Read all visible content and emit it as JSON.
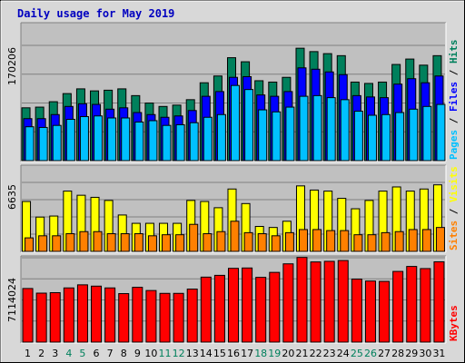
{
  "title": "Daily usage for May 2019",
  "colors": {
    "hits": "#00805c",
    "files": "#0000ff",
    "pages": "#00c0ff",
    "visits": "#ffff00",
    "sites": "#ff8000",
    "kbytes": "#ff0000",
    "plot_bg": "#c0c0c0",
    "frame_bg": "#d8d8d8",
    "title": "#0000c0",
    "weekend": "#00805c",
    "weekday": "#000000"
  },
  "chart_data": [
    {
      "type": "bar",
      "panel": "hits-files-pages",
      "categories": [
        "1",
        "2",
        "3",
        "4",
        "5",
        "6",
        "7",
        "8",
        "9",
        "10",
        "11",
        "12",
        "13",
        "14",
        "15",
        "16",
        "17",
        "18",
        "19",
        "20",
        "21",
        "22",
        "23",
        "24",
        "25",
        "26",
        "27",
        "28",
        "29",
        "30",
        "31"
      ],
      "max_label": "170206",
      "ylim": [
        0,
        170206
      ],
      "legend": [
        {
          "label": "Pages",
          "color_key": "pages"
        },
        {
          "label": "Files",
          "color_key": "files"
        },
        {
          "label": "Hits",
          "color_key": "hits"
        }
      ],
      "legend_sep": "/",
      "series": [
        {
          "name": "Hits",
          "color_key": "hits",
          "values": [
            78000,
            79000,
            87000,
            99000,
            106000,
            103000,
            104000,
            106000,
            96000,
            85000,
            80000,
            82000,
            90000,
            115000,
            125000,
            152000,
            146000,
            118000,
            116000,
            123000,
            166000,
            161000,
            158000,
            155000,
            116000,
            114000,
            116000,
            142000,
            150000,
            141000,
            155000
          ]
        },
        {
          "name": "Files",
          "color_key": "files",
          "values": [
            62000,
            62000,
            68000,
            80000,
            84000,
            83000,
            76000,
            78000,
            71000,
            68000,
            64000,
            66000,
            74000,
            95000,
            102000,
            123000,
            124000,
            97000,
            95000,
            102000,
            137000,
            135000,
            131000,
            127000,
            96000,
            94000,
            93000,
            113000,
            121000,
            115000,
            125000
          ]
        },
        {
          "name": "Pages",
          "color_key": "pages",
          "values": [
            50000,
            49000,
            52000,
            61000,
            65000,
            66000,
            63000,
            63000,
            57000,
            59000,
            52000,
            53000,
            56000,
            64000,
            68000,
            111000,
            105000,
            75000,
            72000,
            79000,
            95000,
            96000,
            93000,
            90000,
            73000,
            67000,
            68000,
            71000,
            76000,
            80000,
            83000
          ]
        }
      ]
    },
    {
      "type": "bar",
      "panel": "visits-sites",
      "categories": [
        "1",
        "2",
        "3",
        "4",
        "5",
        "6",
        "7",
        "8",
        "9",
        "10",
        "11",
        "12",
        "13",
        "14",
        "15",
        "16",
        "17",
        "18",
        "19",
        "20",
        "21",
        "22",
        "23",
        "24",
        "25",
        "26",
        "27",
        "28",
        "29",
        "30",
        "31"
      ],
      "max_label": "6635",
      "ylim": [
        0,
        6635
      ],
      "legend": [
        {
          "label": "Sites",
          "color_key": "sites"
        },
        {
          "label": "Visits",
          "color_key": "visits"
        }
      ],
      "legend_sep": "/",
      "series": [
        {
          "name": "Visits",
          "color_key": "visits",
          "values": [
            4800,
            3300,
            3400,
            5800,
            5400,
            5200,
            4900,
            3500,
            2700,
            2700,
            2700,
            2700,
            4900,
            4800,
            4200,
            6000,
            4600,
            2400,
            2300,
            2900,
            6300,
            5900,
            5800,
            5100,
            4100,
            4900,
            5800,
            6200,
            5800,
            6000,
            6400
          ]
        },
        {
          "name": "Sites",
          "color_key": "sites",
          "values": [
            1300,
            1500,
            1500,
            1700,
            1900,
            1900,
            1700,
            1700,
            1700,
            1500,
            1600,
            1600,
            2600,
            1700,
            1900,
            2900,
            1800,
            1700,
            1500,
            1800,
            2100,
            2100,
            2000,
            2000,
            1600,
            1600,
            1800,
            1900,
            2100,
            2100,
            2300
          ]
        }
      ]
    },
    {
      "type": "bar",
      "panel": "kbytes",
      "categories": [
        "1",
        "2",
        "3",
        "4",
        "5",
        "6",
        "7",
        "8",
        "9",
        "10",
        "11",
        "12",
        "13",
        "14",
        "15",
        "16",
        "17",
        "18",
        "19",
        "20",
        "21",
        "22",
        "23",
        "24",
        "25",
        "26",
        "27",
        "28",
        "29",
        "30",
        "31"
      ],
      "max_label": "7114024",
      "ylim": [
        0,
        7114024
      ],
      "legend": [
        {
          "label": "KBytes",
          "color_key": "kbytes"
        }
      ],
      "series": [
        {
          "name": "KBytes",
          "color_key": "kbytes",
          "values": [
            4520000,
            4130000,
            4170000,
            4570000,
            4830000,
            4720000,
            4570000,
            4090000,
            4620000,
            4350000,
            4110000,
            4110000,
            4470000,
            5480000,
            5630000,
            6220000,
            6250000,
            5460000,
            5880000,
            6600000,
            7140000,
            6760000,
            6810000,
            6880000,
            5310000,
            5150000,
            5120000,
            5960000,
            6380000,
            6200000,
            6770000
          ]
        }
      ]
    }
  ],
  "day_colors": [
    "weekday",
    "weekday",
    "weekday",
    "weekend",
    "weekend",
    "weekday",
    "weekday",
    "weekday",
    "weekday",
    "weekday",
    "weekend",
    "weekend",
    "weekday",
    "weekday",
    "weekday",
    "weekday",
    "weekday",
    "weekend",
    "weekend",
    "weekday",
    "weekday",
    "weekday",
    "weekday",
    "weekday",
    "weekend",
    "weekend",
    "weekday",
    "weekday",
    "weekday",
    "weekday",
    "weekday"
  ]
}
